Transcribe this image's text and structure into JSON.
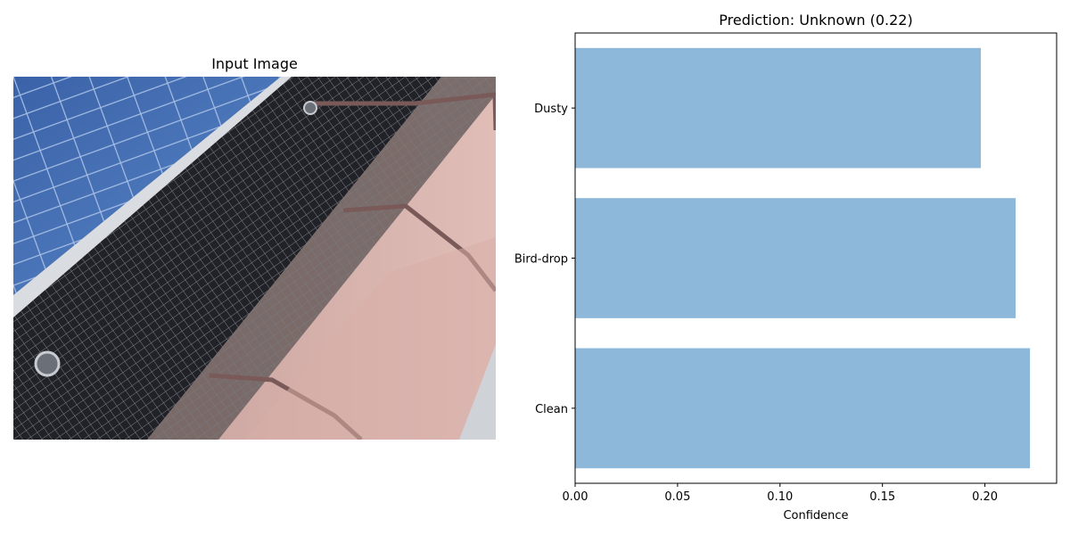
{
  "left_panel": {
    "title": "Input Image"
  },
  "chart_data": {
    "type": "bar",
    "orientation": "horizontal",
    "title": "Prediction: Unknown (0.22)",
    "xlabel": "Confidence",
    "ylabel": "",
    "categories": [
      "Clean",
      "Bird-drop",
      "Dusty"
    ],
    "values": [
      0.222,
      0.215,
      0.198
    ],
    "xlim": [
      0.0,
      0.235
    ],
    "xticks": [
      0.0,
      0.05,
      0.1,
      0.15,
      0.2
    ],
    "xtick_labels": [
      "0.00",
      "0.05",
      "0.10",
      "0.15",
      "0.20"
    ],
    "bar_color": "#8db8d9",
    "grid": false
  }
}
